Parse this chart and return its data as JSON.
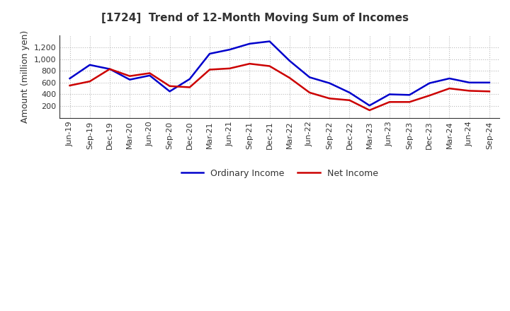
{
  "title": "[1724]  Trend of 12-Month Moving Sum of Incomes",
  "ylabel": "Amount (million yen)",
  "background_color": "#ffffff",
  "plot_background": "#ffffff",
  "grid_color": "#bbbbbb",
  "x_labels": [
    "Jun-19",
    "Sep-19",
    "Dec-19",
    "Mar-20",
    "Jun-20",
    "Sep-20",
    "Dec-20",
    "Mar-21",
    "Jun-21",
    "Sep-21",
    "Dec-21",
    "Mar-22",
    "Jun-22",
    "Sep-22",
    "Dec-22",
    "Mar-23",
    "Jun-23",
    "Sep-23",
    "Dec-23",
    "Mar-24",
    "Jun-24",
    "Sep-24"
  ],
  "ordinary_income": [
    670,
    900,
    830,
    650,
    720,
    450,
    660,
    1090,
    1160,
    1260,
    1300,
    970,
    690,
    590,
    430,
    210,
    400,
    390,
    590,
    670,
    600,
    600
  ],
  "net_income": [
    550,
    620,
    830,
    710,
    760,
    540,
    520,
    820,
    840,
    920,
    880,
    680,
    430,
    330,
    300,
    130,
    270,
    270,
    380,
    500,
    460,
    450
  ],
  "ordinary_income_color": "#0000cc",
  "net_income_color": "#cc0000",
  "line_width": 1.8,
  "ylim": [
    0,
    1400
  ],
  "yticks": [
    200,
    400,
    600,
    800,
    1000,
    1200
  ],
  "title_fontsize": 11,
  "title_color": "#333333",
  "legend_labels": [
    "Ordinary Income",
    "Net Income"
  ],
  "tick_fontsize": 8,
  "ylabel_fontsize": 9
}
